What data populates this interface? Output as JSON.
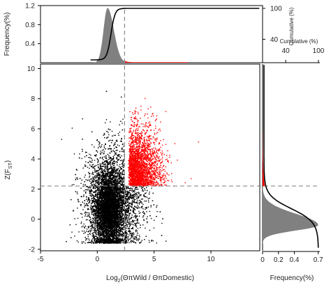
{
  "chart_data": [
    {
      "type": "scatter",
      "name": "main-scatter",
      "xlim": [
        -5,
        14.3
      ],
      "ylim": [
        -2.1,
        10.3
      ],
      "xticks": [
        -5,
        0,
        5,
        10
      ],
      "yticks": [
        -2,
        0,
        2,
        4,
        6,
        8,
        10
      ],
      "xlabel_parts": [
        "Log",
        "2",
        "(ΘπWild / ΘπDomestic)"
      ],
      "ylabel_parts": [
        "Z(F",
        "ST",
        ")"
      ],
      "thresholds": {
        "x": 2.4,
        "y": 2.2
      },
      "series": [
        {
          "selection": "x > 2.4 and Z(FST) > 2.2",
          "color": "#ff0000",
          "clusters": [
            {
              "cx": 3.6,
              "sx": 1.4,
              "cy": 3.6,
              "sy": 1.1,
              "n": 2600
            }
          ]
        },
        {
          "selection": "remaining windows",
          "color": "#000000",
          "clusters": [
            {
              "cx": 1.0,
              "sx": 0.65,
              "cy": 0.7,
              "sy": 1.3,
              "n": 7000
            },
            {
              "cx": 1.6,
              "sx": 1.4,
              "cy": 1.3,
              "sy": 1.9,
              "n": 3500
            }
          ]
        }
      ],
      "colors": {
        "selected": "#ff0000",
        "background": "#000000",
        "threshold_line": "#888888"
      }
    },
    {
      "type": "area",
      "name": "top-marginal",
      "ylabel": "Frequency(%)",
      "ylim": [
        0,
        1.2
      ],
      "yticks": [
        "0.4",
        "0.8",
        "1.2"
      ],
      "right_ylabel": "Cumulative (%)",
      "right_yticks": [
        "40",
        "100"
      ],
      "density_peak_x": 0.9,
      "density_peak_value": 1.15,
      "cumulative_midpoint_x": 1.2,
      "colors": {
        "density": "#808080",
        "selected": "#ff0000",
        "cumulative": "#000000"
      }
    },
    {
      "type": "area",
      "name": "right-marginal",
      "xlabel": "Frequency(%)",
      "xlim": [
        0,
        0.72
      ],
      "xticks": [
        "0",
        "0.2",
        "0.4",
        "0.7"
      ],
      "top_xlabel": "Cumulative (%)",
      "top_xticks": [
        "40",
        "100"
      ],
      "density_peak_y": -0.4,
      "density_peak_value": 0.7,
      "cumulative_midpoint_y": 0.7,
      "colors": {
        "density": "#808080",
        "selected": "#ff0000",
        "cumulative": "#000000"
      }
    }
  ]
}
